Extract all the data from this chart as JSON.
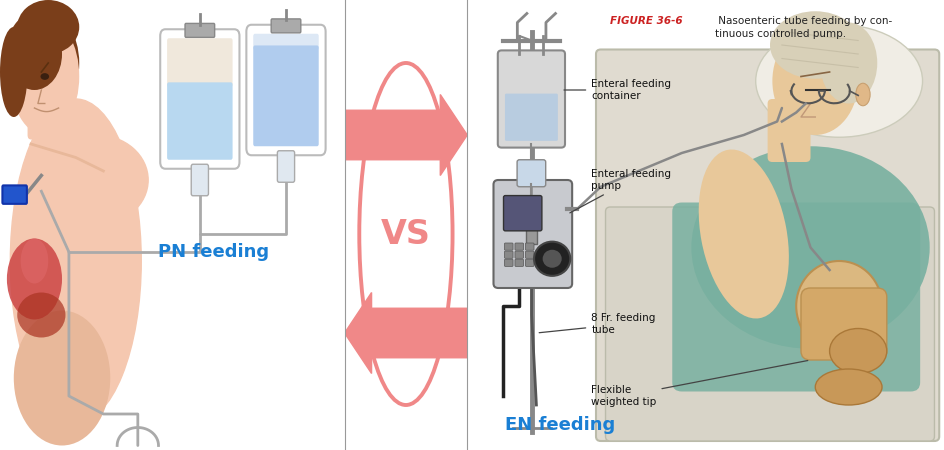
{
  "left_bg_color": "#dde3ea",
  "right_bg_color": "#e8e4dc",
  "middle_bg_color": "#ffffff",
  "arrow_color": "#f08888",
  "vs_color": "#f08888",
  "vs_circle_color": "#f08888",
  "pn_label": "PN feeding",
  "en_label": "EN feeding",
  "pn_label_color": "#1a7fd4",
  "en_label_color": "#1a7fd4",
  "figure_label": "FIGURE 36-6",
  "figure_caption": " Nasoenteric tube feeding by con-\ntinuous controlled pump.",
  "figure_label_color": "#cc2222",
  "caption_color": "#222222",
  "enteral_container_label": "Enteral feeding\ncontainer",
  "enteral_pump_label": "Enteral feeding\npump",
  "feeding_tube_label": "8 Fr. feeding\ntube",
  "flexible_tip_label": "Flexible\nweighted tip"
}
